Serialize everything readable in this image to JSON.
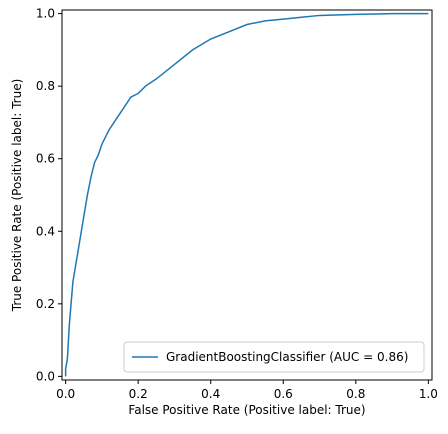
{
  "chart_data": {
    "type": "line",
    "xlabel": "False Positive Rate (Positive label: True)",
    "ylabel": "True Positive Rate (Positive label: True)",
    "xlim": [
      -0.01,
      1.01
    ],
    "ylim": [
      -0.01,
      1.01
    ],
    "x_ticks": [
      0.0,
      0.2,
      0.4,
      0.6,
      0.8,
      1.0
    ],
    "y_ticks": [
      0.0,
      0.2,
      0.4,
      0.6,
      0.8,
      1.0
    ],
    "x_tick_labels": [
      "0.0",
      "0.2",
      "0.4",
      "0.6",
      "0.8",
      "1.0"
    ],
    "y_tick_labels": [
      "0.0",
      "0.2",
      "0.4",
      "0.6",
      "0.8",
      "1.0"
    ],
    "grid": false,
    "legend_position": "lower-right",
    "series": [
      {
        "name": "GradientBoostingClassifier (AUC = 0.86)",
        "color": "#1f77b4",
        "x": [
          0.0,
          0.0,
          0.005,
          0.01,
          0.015,
          0.02,
          0.03,
          0.04,
          0.05,
          0.06,
          0.07,
          0.08,
          0.09,
          0.1,
          0.12,
          0.14,
          0.16,
          0.18,
          0.2,
          0.22,
          0.25,
          0.3,
          0.35,
          0.4,
          0.45,
          0.5,
          0.55,
          0.6,
          0.65,
          0.7,
          0.8,
          0.9,
          1.0
        ],
        "y": [
          0.0,
          0.02,
          0.05,
          0.14,
          0.2,
          0.26,
          0.32,
          0.38,
          0.44,
          0.5,
          0.55,
          0.59,
          0.61,
          0.64,
          0.68,
          0.71,
          0.74,
          0.77,
          0.78,
          0.8,
          0.82,
          0.86,
          0.9,
          0.93,
          0.95,
          0.97,
          0.98,
          0.985,
          0.99,
          0.995,
          0.998,
          1.0,
          1.0
        ]
      }
    ]
  }
}
